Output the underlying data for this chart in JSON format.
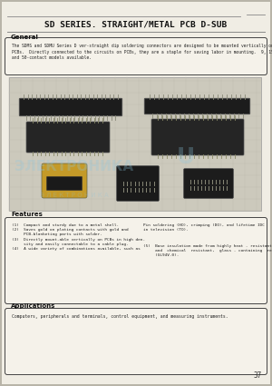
{
  "title": "SD SERIES. STRAIGHT/METAL PCB D-SUB",
  "bg_color": "#f0ede4",
  "section_general": "General",
  "general_text": "The SDMS and SDMU Series D ver-straight dip soldering connectors are designed to be mounted vertically on\nPCBs.  Directly connected to the circuits on PCBs, they are a staple for saving labor in mounting.  9, 15, 25, 37,\nand 50-contact models available.",
  "section_features": "Features",
  "features_col1": "(1)  Compact and sturdy due to a metal shell.\n(2)  Saves gold on plating contacts with gold and\n     PCB-blanketing parts with solder.\n(3)  Directly mount-able vertically on PCBs in high den-\n     sity and easily connectable to a cable plug.\n(4)  A wide variety of combinations available, such as",
  "features_col2_top": "Pin soldering (HO), crimping (DO), and lifetime IDC\nin television (TO).",
  "features_col2_bot": "(5)  Base insulation made from highly heat - resistant\n     and  chemical  resistant,  glass - containing  resin\n     (UL94V-0).",
  "section_applications": "Applications",
  "applications_text": "Computers, peripherals and terminals, control equipment, and measuring instruments.",
  "page_number": "37",
  "watermark_cyan": "#8cc8e0",
  "watermark_alpha": 0.28,
  "line_color": "#888888",
  "border_color": "#444444",
  "grid_color": "#c0bdb0",
  "img_bg": "#ccc9bc"
}
